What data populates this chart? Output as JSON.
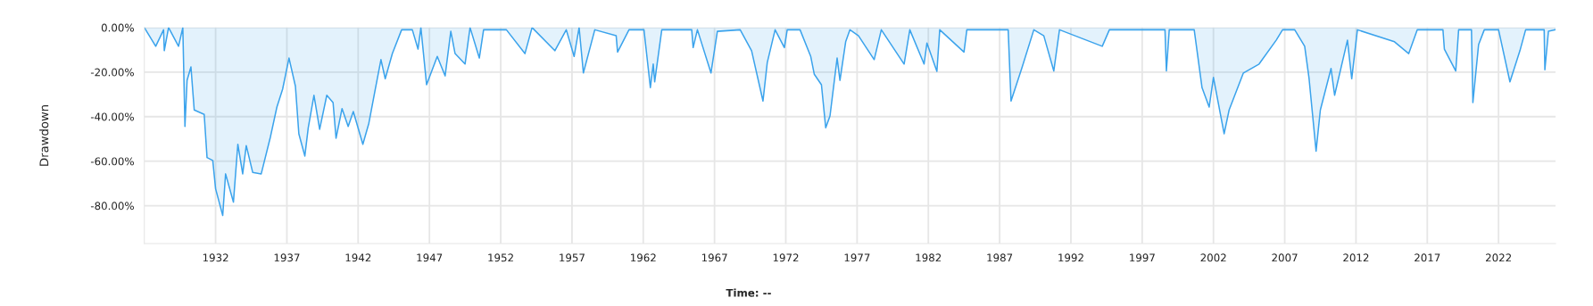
{
  "chart_data": {
    "type": "area",
    "ylabel": "Drawdown",
    "annotations": [
      "Time: --"
    ],
    "series": [
      {
        "color": "#3ba3ec",
        "x": [
          1927.0,
          1927.8,
          1928.35,
          1928.4,
          1928.7,
          1929.4,
          1929.7,
          1929.85,
          1930.0,
          1930.27,
          1930.5,
          1931.2,
          1931.4,
          1931.8,
          1932.0,
          1932.5,
          1932.7,
          1933.25,
          1933.56,
          1933.9,
          1934.15,
          1934.6,
          1935.2,
          1935.85,
          1936.3,
          1936.7,
          1937.15,
          1937.6,
          1937.84,
          1938.26,
          1938.5,
          1938.9,
          1939.3,
          1939.8,
          1940.24,
          1940.45,
          1940.87,
          1941.3,
          1941.66,
          1942.33,
          1942.75,
          1943.2,
          1943.6,
          1943.9,
          1944.4,
          1945.05,
          1945.8,
          1946.2,
          1946.4,
          1946.8,
          1947.55,
          1948.1,
          1948.5,
          1948.8,
          1949.5,
          1949.85,
          1950.5,
          1950.8,
          1952.4,
          1953.7,
          1954.2,
          1955.8,
          1956.6,
          1957.15,
          1957.5,
          1957.8,
          1958.6,
          1960.1,
          1960.2,
          1961.0,
          1962.05,
          1962.5,
          1962.7,
          1962.8,
          1963.3,
          1965.4,
          1965.5,
          1965.8,
          1966.75,
          1967.2,
          1968.8,
          1969.6,
          1970.4,
          1970.7,
          1971.25,
          1971.9,
          1972.1,
          1973.0,
          1973.75,
          1974.0,
          1974.5,
          1974.8,
          1975.1,
          1975.6,
          1975.8,
          1976.2,
          1976.5,
          1977.1,
          1978.2,
          1978.7,
          1980.3,
          1980.7,
          1981.7,
          1981.9,
          1982.6,
          1982.8,
          1984.5,
          1984.7,
          1987.6,
          1987.8,
          1988.55,
          1989.4,
          1990.1,
          1990.8,
          1991.2,
          1994.2,
          1994.7,
          1998.6,
          1998.7,
          1998.9,
          2000.65,
          2001.2,
          2001.7,
          2002.0,
          2002.75,
          2003.1,
          2004.1,
          2005.2,
          2006.4,
          2006.85,
          2007.7,
          2008.4,
          2008.7,
          2009.2,
          2009.5,
          2010.25,
          2010.5,
          2011.4,
          2011.7,
          2012.1,
          2014.7,
          2015.7,
          2016.3,
          2018.1,
          2018.2,
          2019.0,
          2019.2,
          2020.1,
          2020.2,
          2020.6,
          2021.0,
          2022.0,
          2022.8,
          2023.5,
          2023.9,
          2025.2,
          2025.25,
          2025.5,
          2026.0
        ],
        "values": [
          0,
          -8.4,
          -1,
          -10.4,
          0,
          -8.4,
          0,
          -44.4,
          -23.7,
          -17.7,
          -37,
          -39,
          -58.4,
          -59.7,
          -72.4,
          -84.4,
          -65.7,
          -78.4,
          -52.4,
          -65.7,
          -53,
          -65,
          -65.7,
          -49,
          -35.7,
          -27.7,
          -13.7,
          -26.4,
          -47.7,
          -57.7,
          -45,
          -30.4,
          -45.7,
          -30.4,
          -33.7,
          -49.7,
          -36.4,
          -44.4,
          -37.7,
          -52.4,
          -43,
          -27.7,
          -14.4,
          -23,
          -11.7,
          -1,
          -1,
          -9.7,
          0,
          -25.7,
          -13,
          -21.7,
          -1.7,
          -11.7,
          -16.4,
          0,
          -13.7,
          -1,
          -1,
          -11.7,
          0,
          -10.4,
          -1,
          -13,
          0,
          -20.4,
          -1,
          -3.7,
          -11,
          -1,
          -1,
          -27,
          -16.4,
          -24.4,
          -1,
          -1,
          -9,
          -1,
          -20.4,
          -1.7,
          -1,
          -10.4,
          -33,
          -15.7,
          -1,
          -9,
          -1,
          -1,
          -13,
          -21,
          -25.7,
          -45,
          -39.7,
          -13.7,
          -23.7,
          -6.4,
          -1,
          -3.7,
          -14.4,
          -1,
          -16.4,
          -1,
          -16.4,
          -7,
          -19.7,
          -1,
          -11,
          -1,
          -1,
          -33,
          -18.4,
          -1,
          -3.7,
          -19.5,
          -1,
          -8.4,
          -1,
          -1,
          -19.5,
          -1,
          -1,
          -27,
          -35.7,
          -22.4,
          -47.7,
          -37,
          -20.4,
          -16.4,
          -5.7,
          -1,
          -1,
          -8.4,
          -22.4,
          -55.5,
          -37,
          -18.4,
          -30.4,
          -5.7,
          -23,
          -1,
          -6.4,
          -11.7,
          -1,
          -1,
          -9.7,
          -19.5,
          -1,
          -1,
          -33.7,
          -7.7,
          -1,
          -1,
          -24.4,
          -10.4,
          -1,
          -1,
          -19,
          -1.7,
          -1
        ]
      }
    ],
    "xlim": [
      1927.0,
      2026.0
    ],
    "xticks": [
      1932,
      1937,
      1942,
      1947,
      1952,
      1957,
      1962,
      1967,
      1972,
      1977,
      1982,
      1987,
      1992,
      1997,
      2002,
      2007,
      2012,
      2017,
      2022
    ],
    "ylim": [
      -97,
      0
    ],
    "yticks": [
      {
        "value": 0,
        "label": "0.00%"
      },
      {
        "value": -20,
        "label": "-20.00%"
      },
      {
        "value": -40,
        "label": "-40.00%"
      },
      {
        "value": -60,
        "label": "-60.00%"
      },
      {
        "value": -80,
        "label": "-80.00%"
      }
    ],
    "grid": true
  }
}
